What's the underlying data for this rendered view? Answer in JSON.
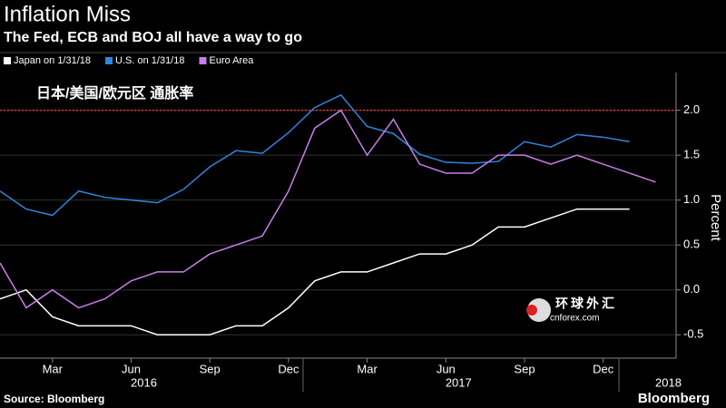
{
  "chart_data": {
    "type": "line",
    "title": "Inflation Miss",
    "subtitle": "The Fed, ECB and BOJ all have a way to go",
    "y_axis_label": "Percent",
    "annotation": "日本/美国/欧元区  通胀率",
    "source": "Source: Bloomberg",
    "brand": "Bloomberg",
    "watermark": [
      "环球外汇",
      "cnforex.com"
    ],
    "x": [
      "2016-01",
      "2016-02",
      "2016-03",
      "2016-04",
      "2016-05",
      "2016-06",
      "2016-07",
      "2016-08",
      "2016-09",
      "2016-10",
      "2016-11",
      "2016-12",
      "2017-01",
      "2017-02",
      "2017-03",
      "2017-04",
      "2017-05",
      "2017-06",
      "2017-07",
      "2017-08",
      "2017-09",
      "2017-10",
      "2017-11",
      "2017-12",
      "2018-01",
      "2018-02"
    ],
    "xticks": [
      {
        "value": "2016-03",
        "label": "Mar"
      },
      {
        "value": "2016-06",
        "label": "Jun"
      },
      {
        "value": "2016-09",
        "label": "Sep"
      },
      {
        "value": "2016-12",
        "label": "Dec"
      },
      {
        "value": "2017-03",
        "label": "Mar"
      },
      {
        "value": "2017-06",
        "label": "Jun"
      },
      {
        "value": "2017-09",
        "label": "Sep"
      },
      {
        "value": "2017-12",
        "label": "Dec"
      }
    ],
    "year_labels": [
      {
        "value": "2016-06",
        "label": "2016"
      },
      {
        "value": "2017-06",
        "label": "2017"
      },
      {
        "value": "2018-02",
        "label": "2018"
      }
    ],
    "series": [
      {
        "name": "Japan  on 1/31/18",
        "color": "#ffffff",
        "values": [
          -0.1,
          0.0,
          -0.3,
          -0.4,
          -0.4,
          -0.4,
          -0.5,
          -0.5,
          -0.5,
          -0.4,
          -0.4,
          -0.2,
          0.1,
          0.2,
          0.2,
          0.3,
          0.4,
          0.4,
          0.5,
          0.7,
          0.7,
          0.8,
          0.9,
          0.9,
          0.9,
          null
        ]
      },
      {
        "name": "U.S. on 1/31/18",
        "color": "#2f86e0",
        "values": [
          1.1,
          0.9,
          0.83,
          1.1,
          1.03,
          1.0,
          0.97,
          1.12,
          1.37,
          1.55,
          1.52,
          1.75,
          2.03,
          2.17,
          1.82,
          1.74,
          1.51,
          1.42,
          1.41,
          1.43,
          1.65,
          1.59,
          1.73,
          1.7,
          1.65,
          null
        ]
      },
      {
        "name": "Euro Area",
        "color": "#c77fe8",
        "values": [
          0.3,
          -0.2,
          0.0,
          -0.2,
          -0.1,
          0.1,
          0.2,
          0.2,
          0.4,
          0.5,
          0.6,
          1.1,
          1.8,
          2.0,
          1.5,
          1.9,
          1.4,
          1.3,
          1.3,
          1.5,
          1.5,
          1.4,
          1.5,
          1.4,
          1.3,
          1.2
        ]
      }
    ],
    "reference_line": 2,
    "reference_color": "#e0303a",
    "ylim": [
      -0.76,
      2.42
    ],
    "yticks": [
      -0.5,
      {
        "value": 0,
        "label": "0.0"
      },
      0.5,
      {
        "value": 1,
        "label": "1.0"
      },
      1.5,
      {
        "value": 2,
        "label": "2.0"
      }
    ],
    "grid": true
  }
}
